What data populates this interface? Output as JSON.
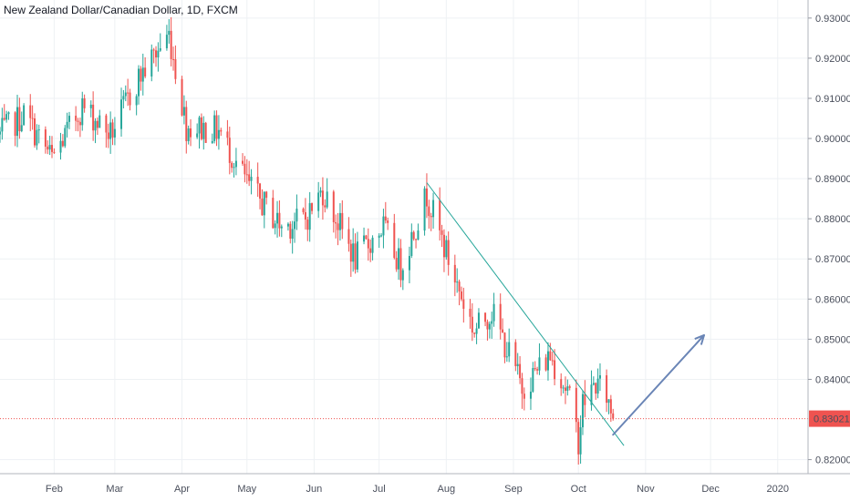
{
  "header": {
    "title": "New Zealand Dollar/Canadian Dollar, 1D, FXCM"
  },
  "colors": {
    "up": "#26a69a",
    "down": "#ef5350",
    "grid": "#eef1f4",
    "trendline": "#26a69a",
    "arrow": "#6a85b6",
    "price_line": "#ef5350",
    "price_label_bg": "#ef5350"
  },
  "chart_data": {
    "type": "candlestick",
    "title": "New Zealand Dollar/Canadian Dollar, 1D, FXCM",
    "grid": true,
    "ylim": [
      0.8165,
      0.9345
    ],
    "xlim": [
      "2019-01-07",
      "2020-01-15"
    ],
    "x_ticks": [
      {
        "date": "2019-02-01",
        "label": "Feb"
      },
      {
        "date": "2019-03-01",
        "label": "Mar"
      },
      {
        "date": "2019-04-01",
        "label": "Apr"
      },
      {
        "date": "2019-05-01",
        "label": "May"
      },
      {
        "date": "2019-06-01",
        "label": "Jun"
      },
      {
        "date": "2019-07-01",
        "label": "Jul"
      },
      {
        "date": "2019-08-01",
        "label": "Aug"
      },
      {
        "date": "2019-09-01",
        "label": "Sep"
      },
      {
        "date": "2019-10-01",
        "label": "Oct"
      },
      {
        "date": "2019-11-01",
        "label": "Nov"
      },
      {
        "date": "2019-12-01",
        "label": "Dec"
      },
      {
        "date": "2020-01-01",
        "label": "2020"
      }
    ],
    "y_ticks": [
      {
        "value": 0.93,
        "label": "0.93000"
      },
      {
        "value": 0.92,
        "label": "0.92000"
      },
      {
        "value": 0.91,
        "label": "0.91000"
      },
      {
        "value": 0.9,
        "label": "0.90000"
      },
      {
        "value": 0.89,
        "label": "0.89000"
      },
      {
        "value": 0.88,
        "label": "0.88000"
      },
      {
        "value": 0.87,
        "label": "0.87000"
      },
      {
        "value": 0.86,
        "label": "0.86000"
      },
      {
        "value": 0.85,
        "label": "0.85000"
      },
      {
        "value": 0.84,
        "label": "0.84000"
      },
      {
        "value": 0.82,
        "label": "0.82000"
      }
    ],
    "current_price": {
      "value": 0.83021,
      "label": "0.83021"
    },
    "anchors": [
      {
        "date": "2019-01-07",
        "close": 0.901
      },
      {
        "date": "2019-01-18",
        "close": 0.906
      },
      {
        "date": "2019-01-31",
        "close": 0.895
      },
      {
        "date": "2019-02-14",
        "close": 0.908
      },
      {
        "date": "2019-02-27",
        "close": 0.901
      },
      {
        "date": "2019-03-12",
        "close": 0.915
      },
      {
        "date": "2019-03-26",
        "close": 0.926
      },
      {
        "date": "2019-04-03",
        "close": 0.903
      },
      {
        "date": "2019-04-18",
        "close": 0.902
      },
      {
        "date": "2019-05-02",
        "close": 0.888
      },
      {
        "date": "2019-05-17",
        "close": 0.878
      },
      {
        "date": "2019-05-28",
        "close": 0.88
      },
      {
        "date": "2019-06-05",
        "close": 0.887
      },
      {
        "date": "2019-06-20",
        "close": 0.87
      },
      {
        "date": "2019-07-03",
        "close": 0.878
      },
      {
        "date": "2019-07-11",
        "close": 0.868
      },
      {
        "date": "2019-07-23",
        "close": 0.886
      },
      {
        "date": "2019-08-05",
        "close": 0.865
      },
      {
        "date": "2019-08-14",
        "close": 0.852
      },
      {
        "date": "2019-08-22",
        "close": 0.857
      },
      {
        "date": "2019-09-05",
        "close": 0.838
      },
      {
        "date": "2019-09-18",
        "close": 0.846
      },
      {
        "date": "2019-09-26",
        "close": 0.837
      },
      {
        "date": "2019-10-01",
        "close": 0.825
      },
      {
        "date": "2019-10-03",
        "close": 0.834
      },
      {
        "date": "2019-10-09",
        "close": 0.839
      },
      {
        "date": "2019-10-14",
        "close": 0.836
      },
      {
        "date": "2019-10-17",
        "close": 0.8302
      }
    ],
    "trendline": {
      "start": {
        "date": "2019-07-23",
        "price": 0.889
      },
      "end": {
        "date": "2019-10-22",
        "price": 0.8235
      }
    },
    "projection_arrow": {
      "start": {
        "date": "2019-10-17",
        "price": 0.8262
      },
      "end": {
        "date": "2019-11-28",
        "price": 0.851
      }
    }
  }
}
